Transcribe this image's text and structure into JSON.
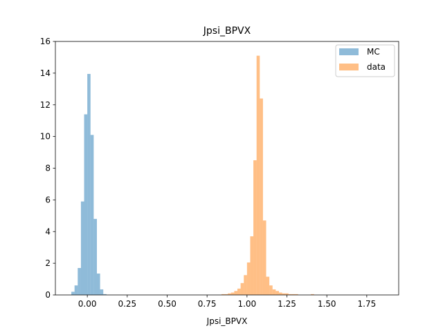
{
  "chart_data": {
    "type": "histogram",
    "title": "Jpsi_BPVX",
    "xlabel": "Jpsi_BPVX",
    "ylabel": "",
    "xlim": [
      -0.2,
      1.95
    ],
    "ylim": [
      0,
      16
    ],
    "xticks": [
      0.0,
      0.25,
      0.5,
      0.75,
      1.0,
      1.25,
      1.5,
      1.75
    ],
    "xtick_labels": [
      "0.00",
      "0.25",
      "0.50",
      "0.75",
      "1.00",
      "1.25",
      "1.50",
      "1.75"
    ],
    "yticks": [
      0,
      2,
      4,
      6,
      8,
      10,
      12,
      14,
      16
    ],
    "ytick_labels": [
      "0",
      "2",
      "4",
      "6",
      "8",
      "10",
      "12",
      "14",
      "16"
    ],
    "grid": false,
    "legend_position": "top-right",
    "series": [
      {
        "name": "MC",
        "color": "#1f77b4",
        "alpha": 0.5,
        "bins": [
          {
            "x0": -0.1,
            "x1": -0.08,
            "y": 0.2
          },
          {
            "x0": -0.08,
            "x1": -0.06,
            "y": 0.6
          },
          {
            "x0": -0.06,
            "x1": -0.04,
            "y": 1.7
          },
          {
            "x0": -0.04,
            "x1": -0.02,
            "y": 5.9
          },
          {
            "x0": -0.02,
            "x1": 0.0,
            "y": 11.4
          },
          {
            "x0": 0.0,
            "x1": 0.02,
            "y": 13.95
          },
          {
            "x0": 0.02,
            "x1": 0.04,
            "y": 10.1
          },
          {
            "x0": 0.04,
            "x1": 0.06,
            "y": 4.8
          },
          {
            "x0": 0.06,
            "x1": 0.08,
            "y": 1.35
          },
          {
            "x0": 0.08,
            "x1": 0.1,
            "y": 0.35
          },
          {
            "x0": 0.1,
            "x1": 0.12,
            "y": 0.05
          }
        ]
      },
      {
        "name": "data",
        "color": "#ff7f0e",
        "alpha": 0.5,
        "bins": [
          {
            "x0": 0.84,
            "x1": 0.86,
            "y": 0.05
          },
          {
            "x0": 0.86,
            "x1": 0.88,
            "y": 0.05
          },
          {
            "x0": 0.88,
            "x1": 0.9,
            "y": 0.1
          },
          {
            "x0": 0.9,
            "x1": 0.92,
            "y": 0.15
          },
          {
            "x0": 0.92,
            "x1": 0.94,
            "y": 0.25
          },
          {
            "x0": 0.94,
            "x1": 0.96,
            "y": 0.4
          },
          {
            "x0": 0.96,
            "x1": 0.98,
            "y": 0.75
          },
          {
            "x0": 0.98,
            "x1": 1.0,
            "y": 1.25
          },
          {
            "x0": 1.0,
            "x1": 1.02,
            "y": 2.05
          },
          {
            "x0": 1.02,
            "x1": 1.04,
            "y": 3.7
          },
          {
            "x0": 1.04,
            "x1": 1.06,
            "y": 8.5
          },
          {
            "x0": 1.06,
            "x1": 1.08,
            "y": 15.1
          },
          {
            "x0": 1.08,
            "x1": 1.1,
            "y": 12.4
          },
          {
            "x0": 1.1,
            "x1": 1.12,
            "y": 4.7
          },
          {
            "x0": 1.12,
            "x1": 1.14,
            "y": 1.15
          },
          {
            "x0": 1.14,
            "x1": 1.16,
            "y": 0.6
          },
          {
            "x0": 1.16,
            "x1": 1.18,
            "y": 0.35
          },
          {
            "x0": 1.18,
            "x1": 1.2,
            "y": 0.25
          },
          {
            "x0": 1.2,
            "x1": 1.22,
            "y": 0.15
          },
          {
            "x0": 1.22,
            "x1": 1.24,
            "y": 0.1
          },
          {
            "x0": 1.24,
            "x1": 1.26,
            "y": 0.1
          },
          {
            "x0": 1.26,
            "x1": 1.28,
            "y": 0.05
          },
          {
            "x0": 1.28,
            "x1": 1.3,
            "y": 0.05
          },
          {
            "x0": 1.3,
            "x1": 1.32,
            "y": 0.05
          },
          {
            "x0": 1.4,
            "x1": 1.42,
            "y": 0.05
          }
        ]
      }
    ]
  }
}
